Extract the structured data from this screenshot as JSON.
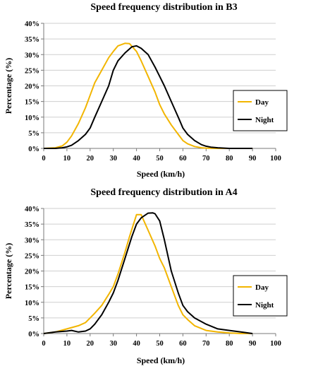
{
  "colors": {
    "day": "#f2b500",
    "night": "#000000",
    "grid": "#cfcfcf",
    "axis": "#7a7a7a"
  },
  "chart_data": [
    {
      "type": "line",
      "title": "Speed frequency distribution in B3",
      "xlabel": "Speed (km/h)",
      "ylabel": "Percentage (%)",
      "xlim": [
        0,
        100
      ],
      "ylim": [
        0,
        40
      ],
      "xticks": [
        "0",
        "10",
        "20",
        "30",
        "40",
        "50",
        "60",
        "70",
        "80",
        "90",
        "100"
      ],
      "yticks": [
        "0%",
        "5%",
        "10%",
        "15%",
        "20%",
        "25%",
        "30%",
        "35%",
        "40%"
      ],
      "grid": true,
      "legend_position": "right",
      "series": [
        {
          "name": "Day",
          "color": "#f2b500",
          "x": [
            0,
            5,
            8,
            10,
            12,
            15,
            18,
            20,
            22,
            25,
            28,
            30,
            32,
            35,
            37,
            40,
            42,
            45,
            48,
            50,
            52,
            55,
            58,
            60,
            62,
            65,
            68,
            70,
            75,
            80,
            85,
            90
          ],
          "y": [
            0,
            0.2,
            0.8,
            2,
            4,
            8,
            13,
            17,
            21,
            25,
            29,
            31,
            32.8,
            33.6,
            33.5,
            31,
            28,
            23,
            18,
            14,
            11,
            7.5,
            4.5,
            2.5,
            1.5,
            0.6,
            0.2,
            0.1,
            0,
            0,
            0,
            0
          ]
        },
        {
          "name": "Night",
          "color": "#000000",
          "x": [
            0,
            5,
            8,
            10,
            12,
            15,
            18,
            20,
            22,
            25,
            28,
            30,
            32,
            35,
            38,
            40,
            42,
            45,
            48,
            50,
            52,
            55,
            58,
            60,
            62,
            65,
            68,
            70,
            72,
            75,
            80,
            85,
            90
          ],
          "y": [
            0,
            0,
            0.2,
            0.5,
            1,
            2.5,
            4.5,
            6.5,
            10,
            15,
            20,
            25,
            28,
            30.5,
            32.5,
            32.8,
            32,
            30,
            26,
            23,
            20,
            15,
            10,
            6.5,
            4.5,
            2.5,
            1.2,
            0.7,
            0.4,
            0.2,
            0,
            0,
            0
          ]
        }
      ]
    },
    {
      "type": "line",
      "title": "Speed frequency distribution in A4",
      "xlabel": "Speed (km/h)",
      "ylabel": "Percentage (%)",
      "xlim": [
        0,
        100
      ],
      "ylim": [
        0,
        40
      ],
      "xticks": [
        "0",
        "10",
        "20",
        "30",
        "40",
        "50",
        "60",
        "70",
        "80",
        "90",
        "100"
      ],
      "yticks": [
        "0%",
        "5%",
        "10%",
        "15%",
        "20%",
        "25%",
        "30%",
        "35%",
        "40%"
      ],
      "grid": true,
      "legend_position": "right",
      "series": [
        {
          "name": "Day",
          "color": "#f2b500",
          "x": [
            0,
            5,
            10,
            15,
            18,
            20,
            22,
            25,
            28,
            30,
            32,
            35,
            37,
            40,
            42,
            45,
            48,
            50,
            52,
            55,
            58,
            60,
            62,
            65,
            70,
            75,
            80,
            85,
            90
          ],
          "y": [
            0,
            0.5,
            1.5,
            2.5,
            3.5,
            5,
            6.5,
            9,
            12.5,
            15,
            19,
            26,
            31,
            38,
            38,
            33,
            28,
            24,
            21,
            15,
            9,
            6,
            4.5,
            2.5,
            1,
            0.5,
            0.2,
            0,
            0
          ]
        },
        {
          "name": "Night",
          "color": "#000000",
          "x": [
            0,
            5,
            10,
            12,
            15,
            18,
            20,
            22,
            25,
            28,
            30,
            32,
            35,
            38,
            40,
            42,
            45,
            47,
            48,
            50,
            52,
            55,
            58,
            60,
            62,
            65,
            70,
            75,
            80,
            85,
            90
          ],
          "y": [
            0,
            0.5,
            0.8,
            1,
            0.5,
            0.8,
            1.5,
            3,
            6,
            10,
            13,
            17,
            24,
            31,
            35,
            37,
            38.5,
            38.6,
            38.3,
            36,
            30,
            20,
            13,
            9,
            7,
            5,
            3,
            1.5,
            1,
            0.5,
            0
          ]
        }
      ]
    }
  ]
}
